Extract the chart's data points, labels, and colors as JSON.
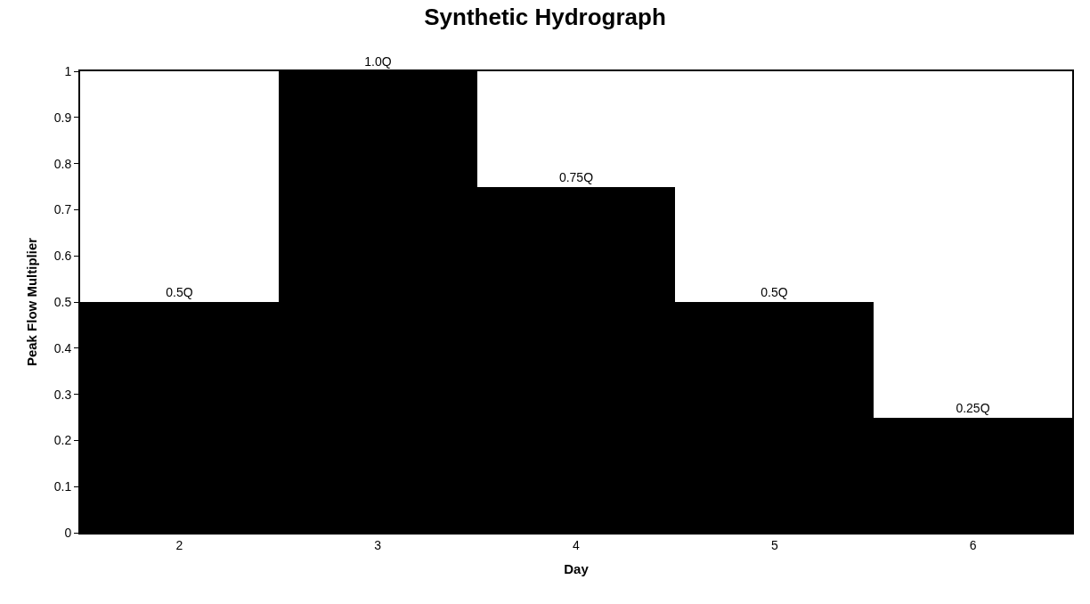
{
  "chart_data": {
    "type": "bar",
    "title": "Synthetic Hydrograph",
    "xlabel": "Day",
    "ylabel": "Peak Flow Multiplier",
    "categories": [
      "2",
      "3",
      "4",
      "5",
      "6"
    ],
    "values": [
      0.5,
      1.0,
      0.75,
      0.5,
      0.25
    ],
    "value_labels": [
      "0.5Q",
      "1.0Q",
      "0.75Q",
      "0.5Q",
      "0.25Q"
    ],
    "color": "#000000",
    "ylim": [
      0,
      1
    ],
    "yticks": [
      0,
      0.1,
      0.2,
      0.3,
      0.4,
      0.5,
      0.6,
      0.7,
      0.8,
      0.9,
      1
    ],
    "grid": false,
    "legend": false
  }
}
